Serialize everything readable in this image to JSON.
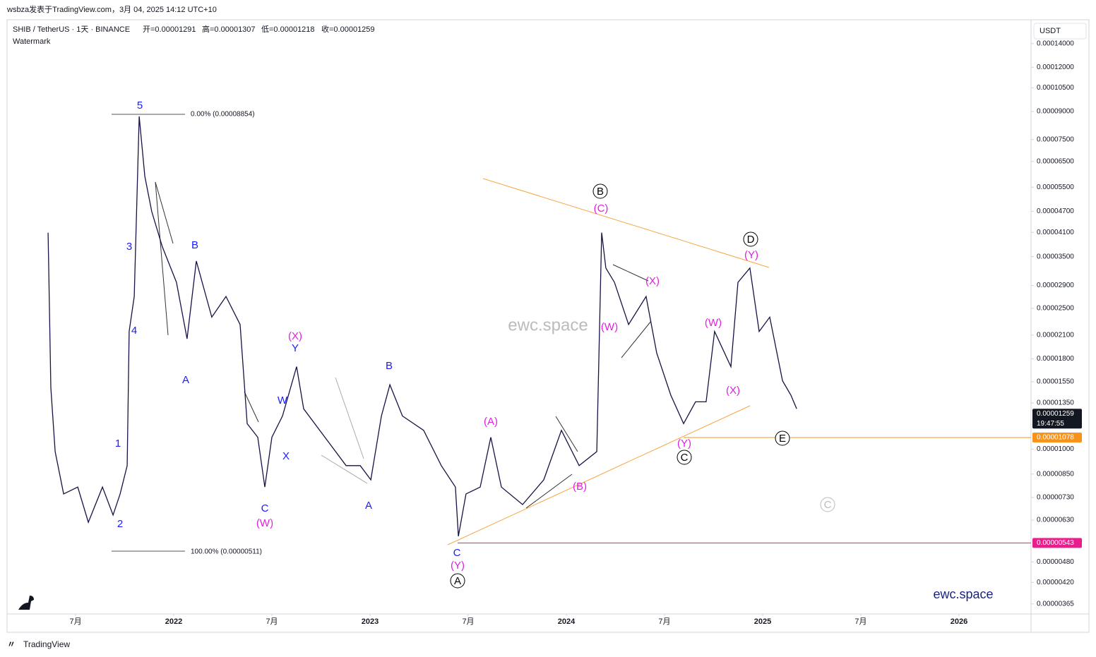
{
  "header": {
    "publisher": "wsbza发表于TradingView.com，3月 04, 2025 14:12 UTC+10",
    "symbol": "SHIB / TetherUS · 1天 · BINANCE",
    "open": "开=0.00001291",
    "high": "高=0.00001307",
    "low": "低=0.00001218",
    "close": "收=0.00001259",
    "watermark_label": "Watermark",
    "currency": "USDT"
  },
  "chart_data": {
    "type": "line",
    "log_scale": true,
    "color": "#161245",
    "x": [
      2021.36,
      2021.374,
      2021.396,
      2021.439,
      2021.511,
      2021.565,
      2021.637,
      2021.691,
      2021.727,
      2021.763,
      2021.773,
      2021.799,
      2021.824,
      2021.853,
      2021.888,
      2021.942,
      2022.014,
      2022.068,
      2022.115,
      2022.194,
      2022.266,
      2022.338,
      2022.374,
      2022.428,
      2022.464,
      2022.5,
      2022.554,
      2022.626,
      2022.662,
      2022.77,
      2022.878,
      2022.95,
      2023.004,
      2023.058,
      2023.101,
      2023.165,
      2023.273,
      2023.363,
      2023.435,
      2023.45,
      2023.489,
      2023.561,
      2023.615,
      2023.669,
      2023.777,
      2023.885,
      2023.975,
      2024.065,
      2024.155,
      2024.18,
      2024.201,
      2024.245,
      2024.317,
      2024.406,
      2024.46,
      2024.532,
      2024.597,
      2024.658,
      2024.712,
      2024.755,
      2024.838,
      2024.874,
      2024.935,
      2024.982,
      2025.036,
      2025.101,
      2025.144,
      2025.173
    ],
    "values": [
      4.09e-05,
      1.49e-05,
      9.84e-06,
      7.47e-06,
      7.81e-06,
      6.21e-06,
      7.81e-06,
      6.51e-06,
      7.47e-06,
      8.98e-06,
      2.15e-05,
      2.7e-05,
      8.72e-05,
      5.9e-05,
      4.69e-05,
      3.73e-05,
      2.96e-05,
      2.05e-05,
      3.4e-05,
      2.36e-05,
      2.7e-05,
      2.25e-05,
      1.18e-05,
      1.08e-05,
      7.81e-06,
      1.08e-05,
      1.24e-05,
      1.71e-05,
      1.3e-05,
      1.08e-05,
      8.98e-06,
      8.98e-06,
      8.19e-06,
      1.24e-05,
      1.52e-05,
      1.24e-05,
      1.13e-05,
      8.98e-06,
      7.81e-06,
      5.67e-06,
      7.47e-06,
      7.81e-06,
      1.08e-05,
      7.81e-06,
      6.97e-06,
      8.19e-06,
      1.13e-05,
      8.98e-06,
      9.84e-06,
      4.09e-05,
      3.25e-05,
      2.96e-05,
      2.25e-05,
      2.7e-05,
      1.87e-05,
      1.42e-05,
      1.18e-05,
      1.36e-05,
      1.36e-05,
      2.15e-05,
      1.71e-05,
      2.96e-05,
      3.25e-05,
      2.15e-05,
      2.36e-05,
      1.56e-05,
      1.42e-05,
      1.3e-05
    ],
    "xlim": [
      2021.151,
      2026.367
    ],
    "xticks": [
      {
        "value": 2021.5,
        "label": "7月"
      },
      2022,
      {
        "value": 2022.5,
        "label": "7月"
      },
      2023,
      {
        "value": 2023.5,
        "label": "7月"
      },
      2024,
      {
        "value": 2024.5,
        "label": "7月"
      },
      2025,
      {
        "value": 2025.5,
        "label": "7月"
      },
      2026
    ],
    "ylim": [
      3.42e-06,
      0.000162
    ],
    "yticks": [
      {
        "value": 0.00014,
        "label": "0.00014000"
      },
      {
        "value": 0.00012,
        "label": "0.00012000"
      },
      {
        "value": 0.000105,
        "label": "0.00010500"
      },
      {
        "value": 9e-05,
        "label": "0.00009000"
      },
      {
        "value": 7.5e-05,
        "label": "0.00007500"
      },
      {
        "value": 6.5e-05,
        "label": "0.00006500"
      },
      {
        "value": 5.5e-05,
        "label": "0.00005500"
      },
      {
        "value": 4.7e-05,
        "label": "0.00004700"
      },
      {
        "value": 4.1e-05,
        "label": "0.00004100"
      },
      {
        "value": 3.5e-05,
        "label": "0.00003500"
      },
      {
        "value": 2.9e-05,
        "label": "0.00002900"
      },
      {
        "value": 2.5e-05,
        "label": "0.00002500"
      },
      {
        "value": 2.1e-05,
        "label": "0.00002100"
      },
      {
        "value": 1.8e-05,
        "label": "0.00001800"
      },
      {
        "value": 1.55e-05,
        "label": "0.00001550"
      },
      {
        "value": 1.35e-05,
        "label": "0.00001350"
      },
      {
        "value": 1e-05,
        "label": "0.00001000"
      },
      {
        "value": 8.5e-06,
        "label": "0.00000850"
      },
      {
        "value": 7.3e-06,
        "label": "0.00000730"
      },
      {
        "value": 6.3e-06,
        "label": "0.00000630"
      },
      {
        "value": 4.8e-06,
        "label": "0.00000480"
      },
      {
        "value": 4.2e-06,
        "label": "0.00000420"
      },
      {
        "value": 3.65e-06,
        "label": "0.00000365"
      }
    ],
    "price_tags": [
      {
        "value": 1.259e-05,
        "label": "0.00001259",
        "sub": "19:47:55",
        "color": "#131722"
      },
      {
        "value": 1.078e-05,
        "label": "0.00001078",
        "color": "#f7931a"
      },
      {
        "value": 5.43e-06,
        "label": "0.00000543",
        "color": "#e91e8c"
      }
    ],
    "fib_labels": [
      "0.00% (0.00008854)",
      "100.00% (0.00000511)"
    ],
    "annotations": [
      {
        "text": "5",
        "color": "#1a1aff"
      },
      {
        "text": "3",
        "color": "#1a1aff"
      },
      {
        "text": "4",
        "color": "#1a1aff"
      },
      {
        "text": "1",
        "color": "#1a1aff"
      },
      {
        "text": "2",
        "color": "#1a1aff"
      },
      {
        "text": "B",
        "color": "#1a1aff"
      },
      {
        "text": "A",
        "color": "#1a1aff"
      },
      {
        "text": "C",
        "color": "#1a1aff"
      },
      {
        "text": "W",
        "color": "#1a1aff"
      },
      {
        "text": "X",
        "color": "#1a1aff"
      },
      {
        "text": "Y",
        "color": "#1a1aff"
      },
      {
        "text": "B",
        "color": "#1a1aff"
      },
      {
        "text": "A",
        "color": "#1a1aff"
      },
      {
        "text": "C",
        "color": "#1a1aff"
      },
      {
        "text": "(W)",
        "color": "#e020e0"
      },
      {
        "text": "(X)",
        "color": "#e020e0"
      },
      {
        "text": "(Y)",
        "color": "#e020e0"
      },
      {
        "text": "(A)",
        "color": "#e020e0"
      },
      {
        "text": "(B)",
        "color": "#e020e0"
      },
      {
        "text": "(C)",
        "color": "#e020e0"
      },
      {
        "text": "(W)",
        "color": "#e020e0"
      },
      {
        "text": "(X)",
        "color": "#e020e0"
      },
      {
        "text": "(W)",
        "color": "#e020e0"
      },
      {
        "text": "(X)",
        "color": "#e020e0"
      },
      {
        "text": "(Y)",
        "color": "#e020e0"
      },
      {
        "text": "(Y)",
        "color": "#e020e0"
      },
      {
        "text": "A",
        "color": "#000000",
        "circled": true
      },
      {
        "text": "B",
        "color": "#000000",
        "circled": true
      },
      {
        "text": "C",
        "color": "#000000",
        "circled": true
      },
      {
        "text": "D",
        "color": "#000000",
        "circled": true
      },
      {
        "text": "E",
        "color": "#000000",
        "circled": true
      },
      {
        "text": "C",
        "color": "#bbbbbb",
        "circled": true
      }
    ],
    "watermarks": [
      "ewc.space",
      "ewc.space"
    ]
  },
  "footer": {
    "brand": "TradingView"
  }
}
